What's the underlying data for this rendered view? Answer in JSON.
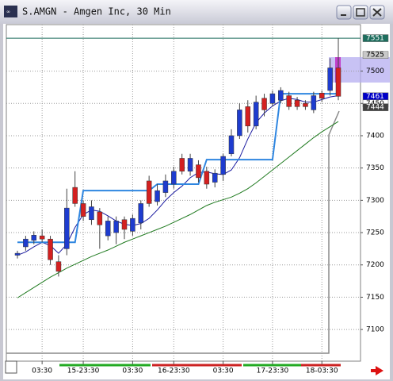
{
  "window": {
    "title": "S.AMGN - Amgen Inc, 30 Min"
  },
  "chart_data": {
    "type": "candlestick",
    "up_color": "#1e3ccf",
    "down_color": "#d42020",
    "categories": [
      null,
      null,
      null,
      "03:30",
      null,
      null,
      null,
      null,
      "15-23:30",
      null,
      null,
      null,
      null,
      null,
      "03:30",
      null,
      null,
      null,
      null,
      "16-23:30",
      null,
      null,
      null,
      null,
      null,
      "03:30",
      null,
      null,
      null,
      null,
      null,
      "17-23:30",
      null,
      null,
      null,
      null,
      null,
      "18-03:30",
      null,
      null
    ],
    "open": [
      7215,
      7228,
      7238,
      7245,
      7240,
      7205,
      7225,
      7320,
      7295,
      7270,
      7282,
      7245,
      7250,
      7270,
      7252,
      7265,
      7330,
      7298,
      7312,
      7325,
      7365,
      7345,
      7355,
      7345,
      7328,
      7340,
      7372,
      7400,
      7445,
      7415,
      7458,
      7450,
      7455,
      7462,
      7455,
      7450,
      7440,
      7466,
      7470,
      7505
    ],
    "close": [
      7218,
      7240,
      7246,
      7240,
      7208,
      7190,
      7288,
      7295,
      7275,
      7290,
      7262,
      7268,
      7268,
      7255,
      7272,
      7295,
      7295,
      7315,
      7330,
      7345,
      7345,
      7365,
      7335,
      7325,
      7342,
      7368,
      7400,
      7440,
      7415,
      7452,
      7440,
      7465,
      7470,
      7445,
      7445,
      7445,
      7462,
      7458,
      7505,
      7461
    ],
    "high": [
      7222,
      7245,
      7252,
      7255,
      7245,
      7215,
      7318,
      7345,
      7300,
      7300,
      7288,
      7275,
      7275,
      7275,
      7278,
      7300,
      7338,
      7325,
      7340,
      7352,
      7372,
      7372,
      7362,
      7352,
      7348,
      7372,
      7410,
      7450,
      7455,
      7462,
      7465,
      7470,
      7475,
      7468,
      7460,
      7455,
      7468,
      7470,
      7520,
      7551
    ],
    "low": [
      7210,
      7222,
      7232,
      7235,
      7200,
      7182,
      7215,
      7290,
      7268,
      7262,
      7225,
      7238,
      7232,
      7240,
      7245,
      7255,
      7290,
      7292,
      7305,
      7318,
      7340,
      7338,
      7328,
      7318,
      7320,
      7330,
      7368,
      7395,
      7405,
      7410,
      7430,
      7445,
      7450,
      7440,
      7440,
      7440,
      7435,
      7452,
      7462,
      7455
    ],
    "lines": [
      {
        "color": "#1a1aa0",
        "values": [
          7215,
          7220,
          7228,
          7235,
          7230,
          7218,
          7232,
          7258,
          7278,
          7285,
          7283,
          7276,
          7268,
          7263,
          7261,
          7264,
          7272,
          7285,
          7300,
          7312,
          7322,
          7335,
          7343,
          7344,
          7341,
          7340,
          7347,
          7366,
          7395,
          7420,
          7435,
          7446,
          7454,
          7458,
          7456,
          7452,
          7452,
          7456,
          7460,
          7462
        ]
      },
      {
        "color": "#1f7a1f",
        "values": [
          7149,
          7157,
          7165,
          7173,
          7181,
          7188,
          7195,
          7201,
          7207,
          7213,
          7218,
          7223,
          7229,
          7235,
          7240,
          7245,
          7250,
          7255,
          7260,
          7266,
          7272,
          7278,
          7285,
          7292,
          7297,
          7301,
          7305,
          7311,
          7318,
          7327,
          7337,
          7347,
          7357,
          7367,
          7377,
          7387,
          7397,
          7406,
          7414,
          7422
        ]
      },
      {
        "color": "#2f86e0",
        "values": [
          7235,
          7235,
          7235,
          7235,
          7235,
          7235,
          7235,
          7235,
          7315,
          7315,
          7315,
          7315,
          7315,
          7315,
          7315,
          7315,
          7315,
          7325,
          7325,
          7325,
          7325,
          7325,
          7325,
          7363,
          7363,
          7363,
          7363,
          7363,
          7363,
          7363,
          7363,
          7363,
          7465,
          7465,
          7465,
          7465,
          7465,
          7465,
          7465,
          7465
        ]
      }
    ],
    "ylim": [
      7051,
      7572
    ],
    "yticks": [
      7100,
      7150,
      7200,
      7250,
      7300,
      7350,
      7400,
      7450,
      7500
    ],
    "grid": true,
    "price_tags": [
      {
        "value": 7551,
        "color": "#1e6e5e",
        "text_color": "#ffffff"
      },
      {
        "value": 7525,
        "color": "#c8c8c8",
        "text_color": "#000000"
      },
      {
        "value": 7461,
        "color": "#0000c8",
        "text_color": "#ffffff"
      },
      {
        "value": 7450,
        "color": "#ffffff",
        "text_color": "#000000"
      },
      {
        "value": 7444,
        "color": "#404040",
        "text_color": "#ffffff"
      }
    ]
  }
}
